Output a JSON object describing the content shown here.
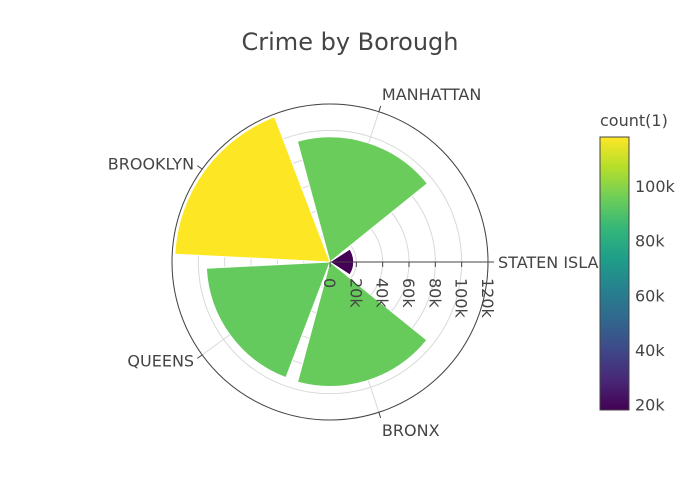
{
  "chart_data": {
    "type": "barpolar",
    "title": "Crime by Borough",
    "categories": [
      "STATEN ISLAND",
      "MANHATTAN",
      "BROOKLYN",
      "QUEENS",
      "BRONX"
    ],
    "values": [
      18000,
      95000,
      118000,
      94000,
      94500
    ],
    "radial_range": [
      0,
      120000
    ],
    "radial_ticks": [
      "0",
      "20k",
      "40k",
      "60k",
      "80k",
      "100k",
      "120k"
    ],
    "radial_tick_values": [
      0,
      20000,
      40000,
      60000,
      80000,
      100000,
      120000
    ],
    "grid": true,
    "colorbar": {
      "title": "count(1)",
      "colorscale": "Viridis",
      "range": [
        18000,
        118000
      ],
      "ticks": [
        "20k",
        "40k",
        "60k",
        "80k",
        "100k"
      ],
      "tick_values": [
        20000,
        40000,
        60000,
        80000,
        100000
      ],
      "colors": [
        "#440154",
        "#482878",
        "#3e4989",
        "#31688e",
        "#26828e",
        "#1f9e89",
        "#35b779",
        "#6ece58",
        "#b5de2b",
        "#fde725"
      ]
    }
  }
}
